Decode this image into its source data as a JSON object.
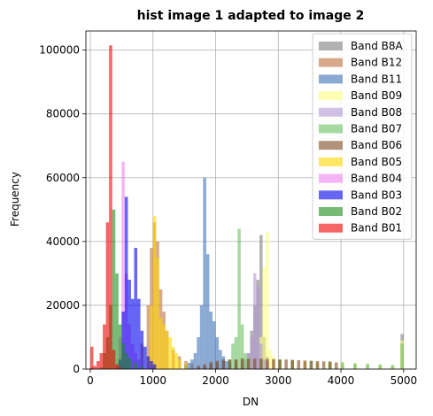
{
  "chart_data": {
    "type": "bar",
    "title": "hist image 1 adapted to image 2",
    "xlabel": "DN",
    "ylabel": "Frequency",
    "xlim": [
      -70,
      5200
    ],
    "ylim": [
      0,
      106000
    ],
    "xticks": [
      0,
      1000,
      2000,
      3000,
      4000,
      5000
    ],
    "yticks": [
      0,
      20000,
      40000,
      60000,
      80000,
      100000
    ],
    "xtick_labels": [
      "0",
      "1000",
      "2000",
      "3000",
      "4000",
      "5000"
    ],
    "ytick_labels": [
      "0",
      "20000",
      "40000",
      "60000",
      "80000",
      "100000"
    ],
    "grid": true,
    "legend_position": "top-right",
    "bin_width": 50,
    "series": [
      {
        "name": "Band B8A",
        "color": "#7f7f7f",
        "bins": [
          [
            0,
            300
          ],
          [
            500,
            500
          ],
          [
            1000,
            700
          ],
          [
            1500,
            1200
          ],
          [
            1900,
            1500
          ],
          [
            2000,
            2000
          ],
          [
            2100,
            2500
          ],
          [
            2200,
            2800
          ],
          [
            2300,
            3000
          ],
          [
            2400,
            3500
          ],
          [
            2500,
            5000
          ],
          [
            2550,
            12000
          ],
          [
            2600,
            20000
          ],
          [
            2650,
            28000
          ],
          [
            2700,
            42000
          ],
          [
            2750,
            10000
          ],
          [
            2800,
            4000
          ],
          [
            2900,
            3200
          ],
          [
            3000,
            2800
          ],
          [
            3200,
            2500
          ],
          [
            3400,
            2200
          ],
          [
            3600,
            2000
          ],
          [
            3800,
            1700
          ],
          [
            4000,
            1500
          ],
          [
            4200,
            1300
          ],
          [
            4400,
            1100
          ],
          [
            4600,
            900
          ],
          [
            4800,
            800
          ],
          [
            4950,
            11000
          ]
        ]
      },
      {
        "name": "Band B12",
        "color": "#bf6f3f",
        "bins": [
          [
            0,
            600
          ],
          [
            500,
            1500
          ],
          [
            800,
            8000
          ],
          [
            900,
            20000
          ],
          [
            950,
            38000
          ],
          [
            1000,
            46000
          ],
          [
            1050,
            40000
          ],
          [
            1100,
            25000
          ],
          [
            1150,
            18000
          ],
          [
            1200,
            12000
          ],
          [
            1300,
            6000
          ],
          [
            1400,
            4000
          ],
          [
            1500,
            2500
          ],
          [
            1600,
            1800
          ],
          [
            1700,
            1200
          ],
          [
            1800,
            900
          ],
          [
            1900,
            700
          ],
          [
            2000,
            500
          ],
          [
            2200,
            300
          ]
        ]
      },
      {
        "name": "Band B11",
        "color": "#3e72b5",
        "bins": [
          [
            1500,
            1500
          ],
          [
            1550,
            2000
          ],
          [
            1600,
            3000
          ],
          [
            1650,
            5000
          ],
          [
            1700,
            10000
          ],
          [
            1750,
            20000
          ],
          [
            1800,
            60000
          ],
          [
            1850,
            36000
          ],
          [
            1900,
            18000
          ],
          [
            1950,
            15000
          ],
          [
            2000,
            10000
          ],
          [
            2050,
            6000
          ],
          [
            2100,
            4000
          ],
          [
            2150,
            2500
          ],
          [
            2200,
            1800
          ],
          [
            2300,
            1200
          ],
          [
            2400,
            900
          ],
          [
            2600,
            600
          ]
        ]
      },
      {
        "name": "Band B09",
        "color": "#ffff7f",
        "bins": [
          [
            2700,
            10000
          ],
          [
            2750,
            32000
          ],
          [
            2800,
            43000
          ],
          [
            2850,
            6000
          ],
          [
            2900,
            4000
          ],
          [
            3000,
            3000
          ],
          [
            3200,
            2800
          ],
          [
            3400,
            2500
          ],
          [
            3600,
            2300
          ],
          [
            3800,
            2100
          ],
          [
            4000,
            1900
          ],
          [
            4200,
            1700
          ],
          [
            4400,
            1500
          ],
          [
            4600,
            1300
          ],
          [
            4800,
            1100
          ],
          [
            4950,
            9000
          ]
        ]
      },
      {
        "name": "Band B08",
        "color": "#b39ad3",
        "bins": [
          [
            2400,
            2000
          ],
          [
            2450,
            3000
          ],
          [
            2500,
            5000
          ],
          [
            2550,
            10000
          ],
          [
            2600,
            30000
          ],
          [
            2650,
            26000
          ],
          [
            2700,
            8000
          ],
          [
            2750,
            3000
          ],
          [
            2800,
            2500
          ]
        ]
      },
      {
        "name": "Band B07",
        "color": "#6abf5f",
        "bins": [
          [
            2200,
            3000
          ],
          [
            2250,
            8000
          ],
          [
            2300,
            10000
          ],
          [
            2350,
            44000
          ],
          [
            2400,
            14000
          ],
          [
            2450,
            5000
          ],
          [
            2500,
            3500
          ],
          [
            2700,
            3000
          ],
          [
            3000,
            3000
          ],
          [
            3200,
            2800
          ],
          [
            3500,
            2600
          ],
          [
            3800,
            2400
          ],
          [
            4000,
            2200
          ],
          [
            4200,
            1900
          ],
          [
            4400,
            1700
          ],
          [
            4600,
            1500
          ],
          [
            4800,
            1300
          ],
          [
            4950,
            8000
          ]
        ]
      },
      {
        "name": "Band B06",
        "color": "#7f4a1f",
        "bins": [
          [
            1700,
            800
          ],
          [
            1800,
            1500
          ],
          [
            1900,
            2200
          ],
          [
            2000,
            2600
          ],
          [
            2100,
            3000
          ],
          [
            2200,
            3000
          ],
          [
            2300,
            3000
          ],
          [
            2400,
            3200
          ],
          [
            2500,
            3200
          ],
          [
            2600,
            3300
          ],
          [
            2700,
            3300
          ],
          [
            2800,
            3200
          ],
          [
            2900,
            3100
          ],
          [
            3000,
            3000
          ],
          [
            3100,
            3000
          ],
          [
            3200,
            2900
          ],
          [
            3300,
            2800
          ],
          [
            3400,
            2700
          ],
          [
            3500,
            2600
          ],
          [
            3600,
            2500
          ],
          [
            3700,
            2400
          ],
          [
            3800,
            2300
          ],
          [
            3900,
            2100
          ]
        ]
      },
      {
        "name": "Band B05",
        "color": "#ffd700",
        "bins": [
          [
            900,
            4000
          ],
          [
            950,
            20000
          ],
          [
            1000,
            48000
          ],
          [
            1050,
            35000
          ],
          [
            1100,
            16000
          ],
          [
            1150,
            14000
          ],
          [
            1200,
            12000
          ],
          [
            1250,
            10000
          ],
          [
            1300,
            7000
          ],
          [
            1350,
            5000
          ],
          [
            1400,
            3000
          ],
          [
            1500,
            1800
          ]
        ]
      },
      {
        "name": "Band B04",
        "color": "#ee82ee",
        "bins": [
          [
            400,
            1000
          ],
          [
            450,
            10000
          ],
          [
            500,
            65000
          ],
          [
            550,
            30000
          ],
          [
            600,
            14000
          ],
          [
            650,
            8000
          ],
          [
            700,
            5000
          ],
          [
            750,
            3000
          ],
          [
            800,
            2000
          ],
          [
            900,
            1000
          ]
        ]
      },
      {
        "name": "Band B03",
        "color": "#0000ee",
        "bins": [
          [
            450,
            3000
          ],
          [
            500,
            18000
          ],
          [
            550,
            54000
          ],
          [
            600,
            28000
          ],
          [
            650,
            22000
          ],
          [
            700,
            38000
          ],
          [
            750,
            22000
          ],
          [
            800,
            12000
          ],
          [
            850,
            7000
          ],
          [
            900,
            4000
          ],
          [
            950,
            2500
          ],
          [
            1000,
            1500
          ]
        ]
      },
      {
        "name": "Band B02",
        "color": "#1a8c1a",
        "bins": [
          [
            150,
            500
          ],
          [
            200,
            5000
          ],
          [
            250,
            10000
          ],
          [
            300,
            20000
          ],
          [
            350,
            50000
          ],
          [
            400,
            30000
          ],
          [
            450,
            14000
          ],
          [
            500,
            8000
          ],
          [
            550,
            5000
          ],
          [
            600,
            3500
          ],
          [
            700,
            2000
          ],
          [
            800,
            1000
          ]
        ]
      },
      {
        "name": "Band B01",
        "color": "#ee0000",
        "bins": [
          [
            0,
            7000
          ],
          [
            50,
            1000
          ],
          [
            100,
            2500
          ],
          [
            150,
            5000
          ],
          [
            200,
            14000
          ],
          [
            250,
            46000
          ],
          [
            300,
            101500
          ],
          [
            350,
            6000
          ],
          [
            400,
            1500
          ],
          [
            450,
            500
          ]
        ]
      }
    ]
  }
}
